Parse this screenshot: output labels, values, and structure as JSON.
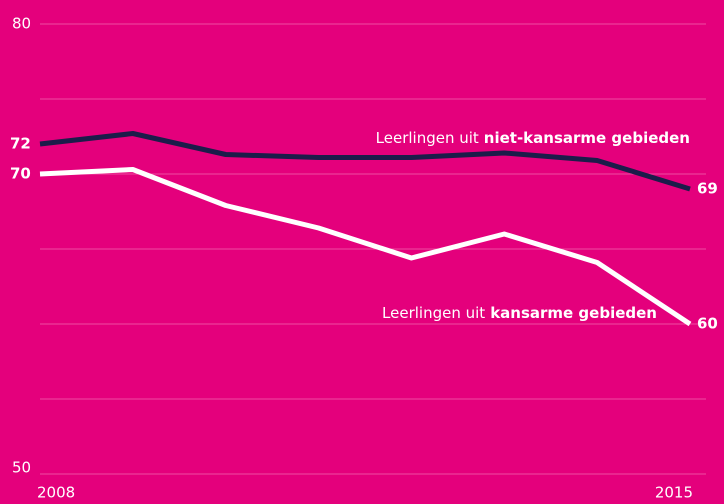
{
  "chart_data": {
    "type": "line",
    "x": [
      2008,
      2009,
      2010,
      2011,
      2012,
      2013,
      2014,
      2015
    ],
    "xlim": [
      2008,
      2015
    ],
    "xticks": [
      2008,
      2015
    ],
    "ylim": [
      50,
      80
    ],
    "yticks": [
      50,
      80
    ],
    "grid_lines": [
      55,
      60,
      65,
      70,
      75
    ],
    "series": [
      {
        "name": [
          "Leerlingen uit",
          "niet-kansarme gebieden"
        ],
        "color": "#1c1c4a",
        "values": [
          72,
          72.7,
          71.3,
          71.1,
          71.1,
          71.4,
          70.9,
          69
        ],
        "value_labels": [
          "72",
          null,
          null,
          null,
          null,
          null,
          null,
          "69"
        ]
      },
      {
        "name": [
          "Leerlingen uit",
          "kansarme gebieden"
        ],
        "color": "#ffffff",
        "values": [
          70,
          70.3,
          67.9,
          66.4,
          64.4,
          66,
          64.1,
          60
        ],
        "value_labels": [
          "70",
          null,
          null,
          null,
          null,
          null,
          null,
          "60"
        ]
      }
    ]
  }
}
